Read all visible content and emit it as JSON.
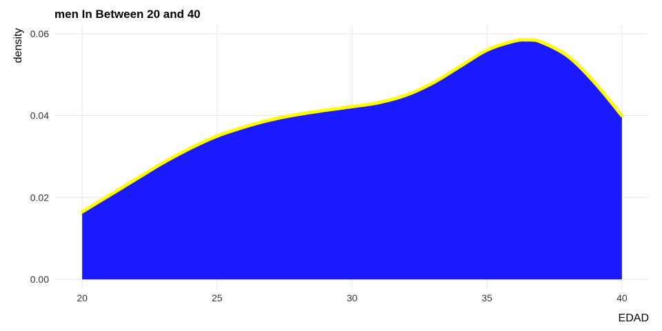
{
  "chart_data": {
    "type": "area",
    "title": "men In Between 20 and 40",
    "xlabel": "EDAD",
    "ylabel": "density",
    "xlim": [
      19,
      41
    ],
    "ylim": [
      -0.0025,
      0.062
    ],
    "x_ticks": [
      20,
      25,
      30,
      35,
      40
    ],
    "x_tick_labels": [
      "20",
      "25",
      "30",
      "35",
      "40"
    ],
    "y_ticks": [
      0,
      0.02,
      0.04,
      0.06
    ],
    "y_tick_labels": [
      "0.00",
      "0.02",
      "0.04",
      "0.06"
    ],
    "grid": true,
    "legend": "none",
    "fill_color": "#1a1aff",
    "line_color": "#ffff00",
    "series": [
      {
        "x": [
          20,
          21,
          22,
          23,
          24,
          25,
          26,
          27,
          28,
          29,
          30,
          31,
          32,
          33,
          34,
          35,
          36,
          36.5,
          37,
          38,
          39,
          40
        ],
        "values": [
          0.0165,
          0.0205,
          0.0245,
          0.0285,
          0.032,
          0.035,
          0.0372,
          0.039,
          0.0403,
          0.0413,
          0.0422,
          0.0432,
          0.045,
          0.048,
          0.052,
          0.056,
          0.0582,
          0.0585,
          0.058,
          0.0545,
          0.048,
          0.04
        ]
      }
    ]
  }
}
